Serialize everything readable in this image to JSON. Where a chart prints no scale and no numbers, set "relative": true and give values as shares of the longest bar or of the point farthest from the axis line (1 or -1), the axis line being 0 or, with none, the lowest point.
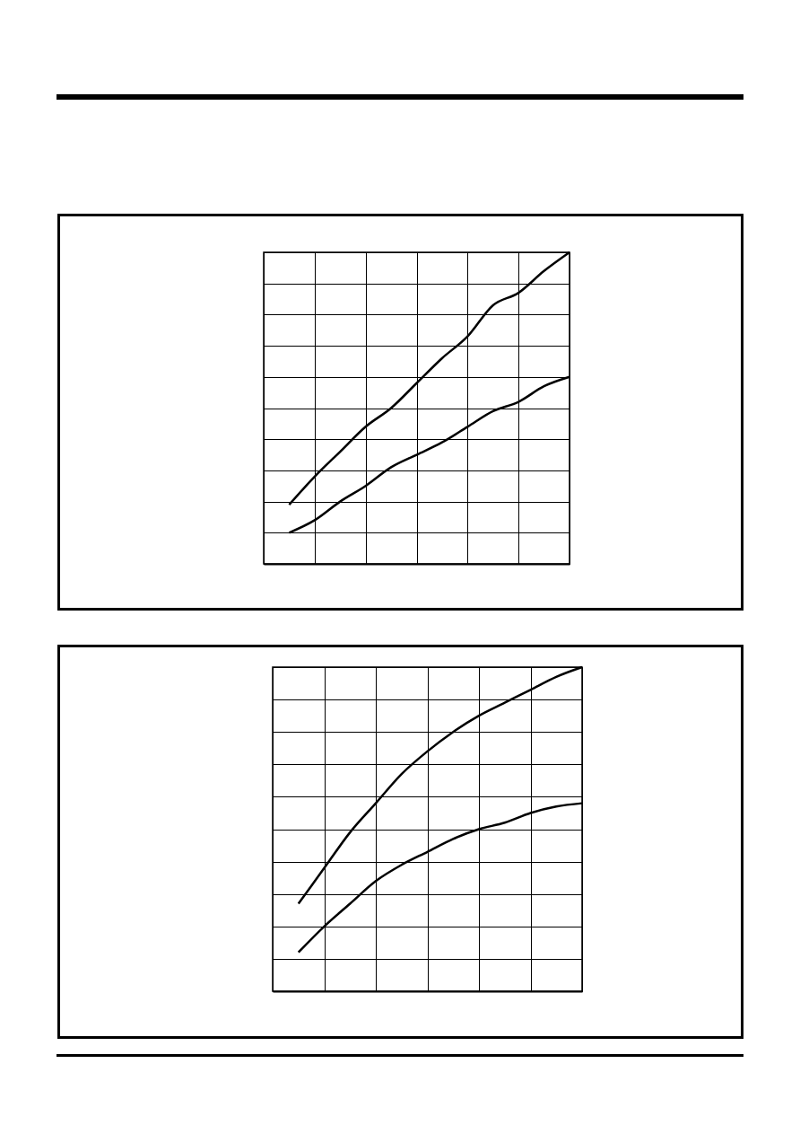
{
  "chart_data": [
    {
      "type": "line",
      "relative": true,
      "grid": true,
      "categories": [
        null,
        null,
        null,
        null,
        null,
        null,
        null,
        null,
        null,
        null,
        null,
        null,
        null
      ],
      "series": [
        {
          "color": "#000000",
          "values": [
            null,
            0.19,
            0.28,
            0.36,
            0.44,
            0.5,
            0.58,
            0.66,
            0.73,
            0.83,
            0.87,
            0.94,
            1
          ]
        },
        {
          "color": "#000000",
          "values": [
            null,
            0.1,
            0.14,
            0.2,
            0.25,
            0.31,
            0.35,
            0.39,
            0.44,
            0.49,
            0.52,
            0.57,
            0.6
          ]
        }
      ]
    },
    {
      "type": "line",
      "relative": true,
      "grid": true,
      "categories": [
        null,
        null,
        null,
        null,
        null,
        null,
        null,
        null,
        null,
        null,
        null,
        null,
        null
      ],
      "series": [
        {
          "color": "#000000",
          "values": [
            null,
            0.27,
            0.38,
            0.49,
            0.58,
            0.67,
            0.74,
            0.8,
            0.85,
            0.89,
            0.93,
            0.97,
            1
          ]
        },
        {
          "color": "#000000",
          "values": [
            null,
            0.12,
            0.2,
            0.27,
            0.34,
            0.39,
            0.43,
            0.47,
            0.5,
            0.52,
            0.55,
            0.57,
            0.58
          ]
        }
      ]
    }
  ]
}
